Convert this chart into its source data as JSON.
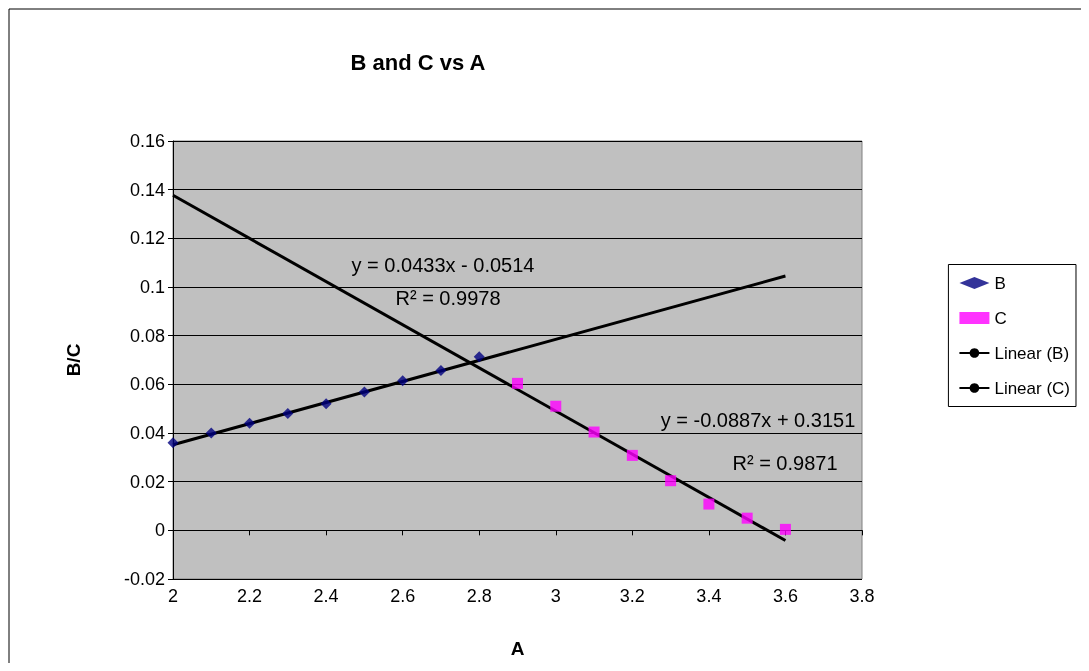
{
  "chart_data": {
    "type": "scatter",
    "title": "B and C vs A",
    "xlabel": "A",
    "ylabel": "B/C",
    "series": [
      {
        "name": "B",
        "type": "scatter",
        "marker": "diamond",
        "color": "#000080",
        "x": [
          2,
          2.1,
          2.2,
          2.3,
          2.4,
          2.5,
          2.6,
          2.7,
          2.8
        ],
        "values": [
          0.036,
          0.04,
          0.044,
          0.048,
          0.052,
          0.0568,
          0.0615,
          0.0657,
          0.0713
        ]
      },
      {
        "name": "C",
        "type": "scatter",
        "marker": "square",
        "color": "#ff00ff",
        "x": [
          2.9,
          3.0,
          3.1,
          3.2,
          3.3,
          3.4,
          3.5,
          3.6
        ],
        "values": [
          0.0604,
          0.051,
          0.0404,
          0.0308,
          0.0204,
          0.0108,
          0.005,
          0.0004
        ]
      },
      {
        "name": "Linear (B)",
        "type": "line",
        "marker": "none",
        "color": "#000000",
        "x": [
          2,
          3.6
        ],
        "values": [
          0.0352,
          0.1045
        ]
      },
      {
        "name": "Linear (C)",
        "type": "line",
        "marker": "none",
        "color": "#000000",
        "x": [
          2,
          3.6
        ],
        "values": [
          0.1377,
          -0.0042
        ]
      }
    ],
    "annotations": [
      "y = 0.0433x - 0.0514",
      "R² = 0.9978",
      "y = -0.0887x + 0.3151",
      "R² = 0.9871"
    ],
    "xlim": [
      2,
      3.8
    ],
    "xticks": [
      2,
      2.2,
      2.4,
      2.6,
      2.8,
      3,
      3.2,
      3.4,
      3.6,
      3.8
    ],
    "ylim": [
      -0.02,
      0.16
    ],
    "yticks": [
      -0.02,
      0,
      0.02,
      0.04,
      0.06,
      0.08,
      0.1,
      0.12,
      0.14,
      0.16
    ],
    "grid": "y",
    "legend": "right"
  }
}
